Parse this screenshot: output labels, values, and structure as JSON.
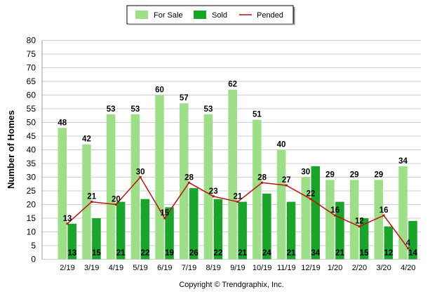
{
  "chart_data": {
    "type": "bar",
    "categories": [
      "2/19",
      "3/19",
      "4/19",
      "5/19",
      "6/19",
      "7/19",
      "8/19",
      "9/19",
      "10/19",
      "11/19",
      "12/19",
      "1/20",
      "2/20",
      "3/20",
      "4/20"
    ],
    "series": [
      {
        "name": "For Sale",
        "kind": "bar",
        "color": "#9cdf87",
        "values": [
          48,
          42,
          53,
          53,
          60,
          57,
          53,
          62,
          51,
          40,
          30,
          29,
          29,
          29,
          34
        ]
      },
      {
        "name": "Sold",
        "kind": "bar",
        "color": "#18a52a",
        "values": [
          13,
          15,
          21,
          22,
          19,
          26,
          22,
          21,
          24,
          21,
          34,
          21,
          15,
          12,
          14
        ]
      },
      {
        "name": "Pended",
        "kind": "line",
        "color": "#c20f0f",
        "values": [
          13,
          21,
          20,
          30,
          15,
          28,
          23,
          21,
          28,
          27,
          22,
          16,
          12,
          16,
          4
        ]
      }
    ],
    "ylabel": "Number of Homes",
    "xlabel": "",
    "ylim": [
      0,
      80
    ],
    "yticks": [
      0,
      5,
      10,
      15,
      20,
      25,
      30,
      35,
      40,
      45,
      50,
      55,
      60,
      65,
      70,
      75,
      80
    ],
    "grid": true,
    "legend": "top-center",
    "footer": "Copyright © Trendgraphix, Inc."
  }
}
